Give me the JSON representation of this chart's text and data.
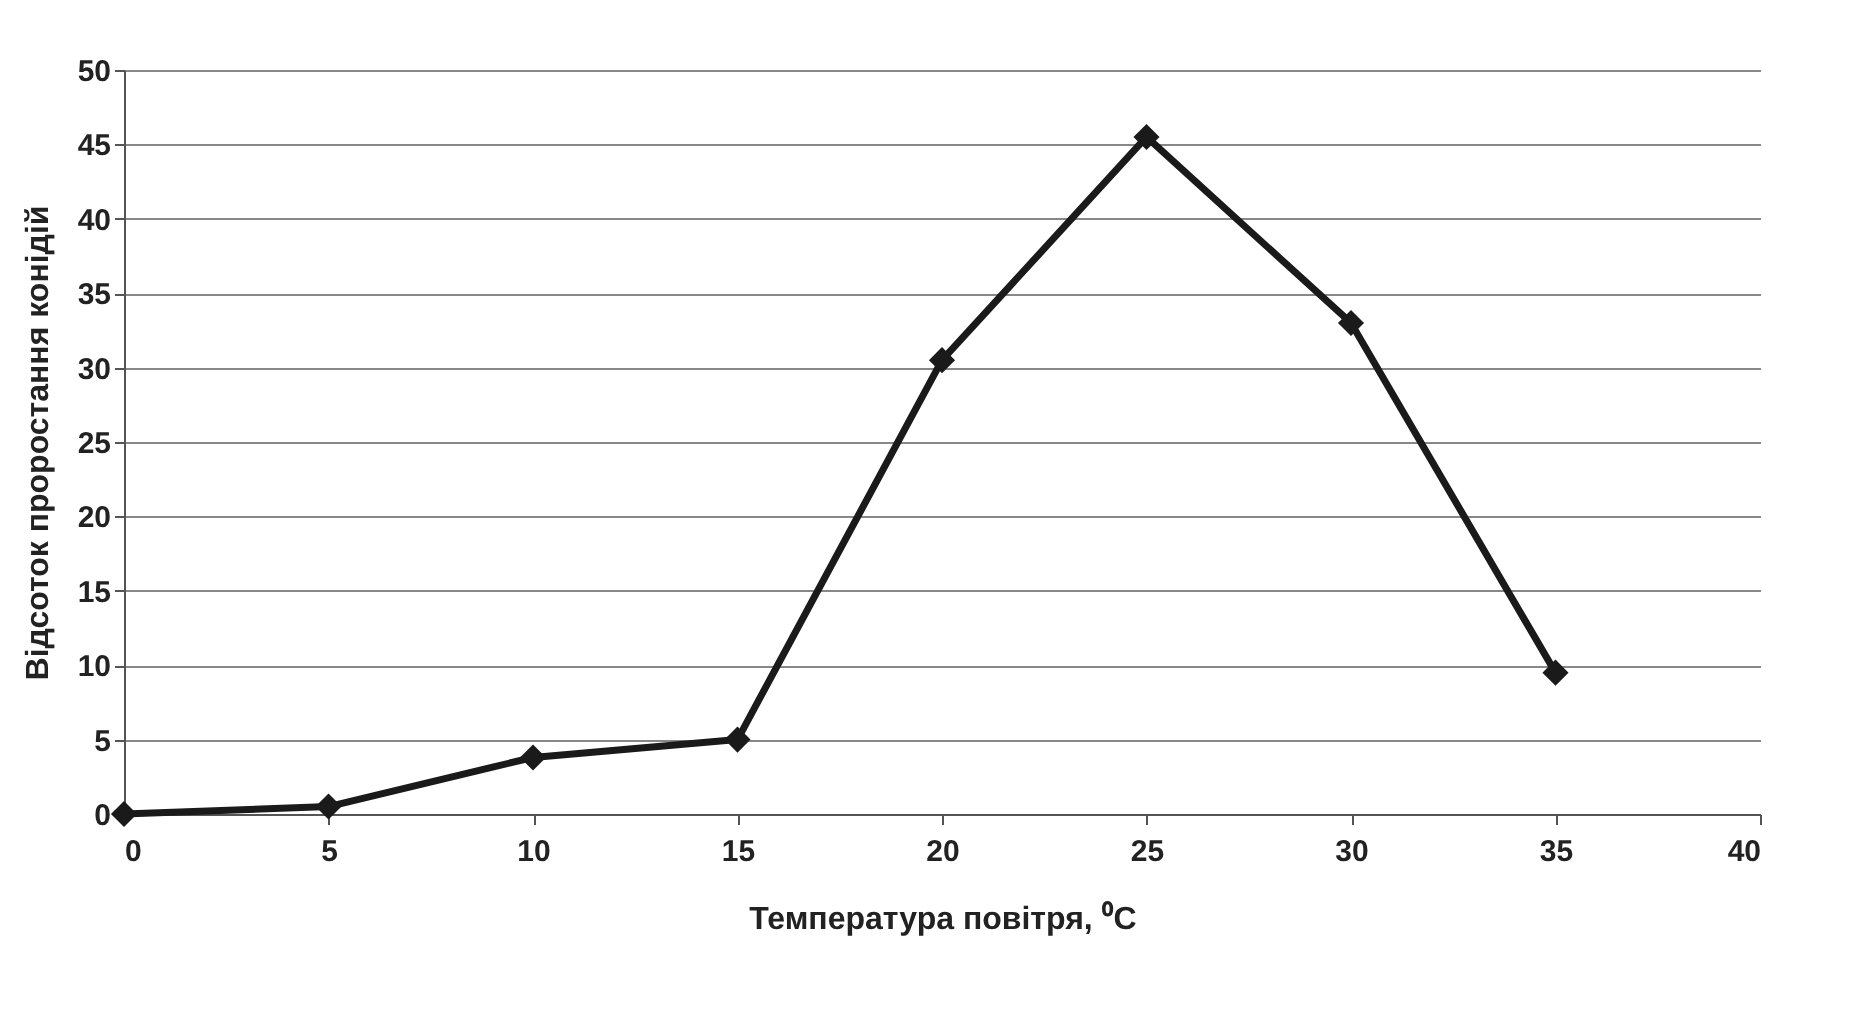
{
  "chart_data": {
    "type": "line",
    "xlabel": "Температура повітря, ⁰C",
    "ylabel": "Відсоток проростання конідій",
    "x": [
      0,
      5,
      10,
      15,
      20,
      25,
      30,
      35
    ],
    "series": [
      {
        "color": "#1a1a1a",
        "values": [
          0,
          0.5,
          3.8,
          5,
          30.5,
          45.5,
          33,
          9.5
        ]
      }
    ],
    "xlim": [
      0,
      40
    ],
    "xticks": [
      0,
      5,
      10,
      15,
      20,
      25,
      30,
      35,
      40
    ],
    "ylim": [
      0,
      50
    ],
    "yticks": [
      0,
      5,
      10,
      15,
      20,
      25,
      30,
      35,
      40,
      45,
      50
    ],
    "grid": "y",
    "marker": "diamond",
    "line_style": "solid"
  }
}
